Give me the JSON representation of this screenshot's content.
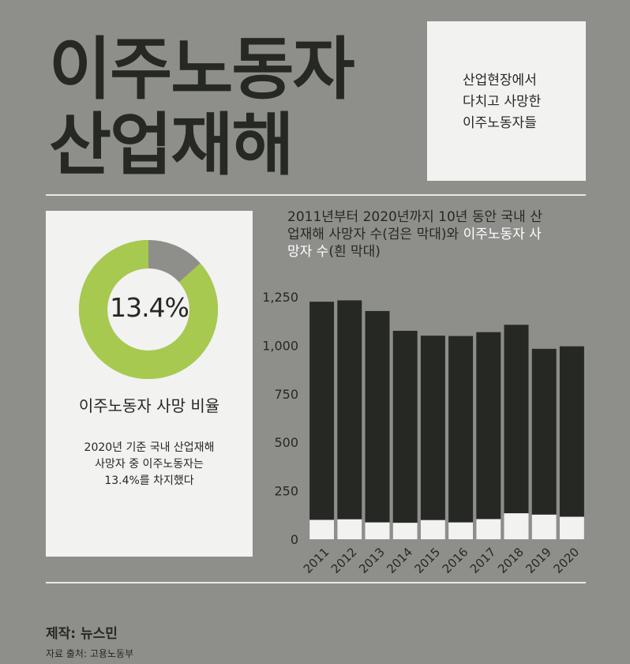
{
  "title": {
    "line1": "이주노동자",
    "line2": "산업재해"
  },
  "description": {
    "lines": [
      "산업현장에서",
      "다치고 사망한",
      "이주노동자들"
    ]
  },
  "donut": {
    "percent_label": "13.4%",
    "value": 13.4,
    "title": "이주노동자 사망 비율",
    "note_lines": [
      "2020년 기준 국내 산업재해",
      "사망자 중 이주노동자는",
      "13.4%를 차지했다"
    ],
    "colors": {
      "share": "#a8c94f",
      "rest": "#8e8f8b"
    }
  },
  "chart_title": {
    "line1": "2011년부터 2020년까지 10년 동안 국내 산",
    "line2_dark": "업재해 사망자 수(검은 막대)와 ",
    "line2_light": "이주노동자 사",
    "line3_light": "망자 수",
    "line3_dark": "(흰 막대)"
  },
  "chart_data": {
    "type": "bar",
    "stacked": "overlay",
    "categories": [
      "2011",
      "2012",
      "2013",
      "2014",
      "2015",
      "2016",
      "2017",
      "2018",
      "2019",
      "2020"
    ],
    "series": [
      {
        "values": [
          1225,
          1232,
          1177,
          1075,
          1050,
          1048,
          1068,
          1106,
          982,
          995
        ],
        "color": "#262824"
      },
      {
        "values": [
          100,
          103,
          87,
          85,
          99,
          87,
          104,
          134,
          127,
          116
        ],
        "color": "#f2f2f0"
      }
    ],
    "yticks": [
      "1,250",
      "1,000",
      "750",
      "500",
      "250",
      "0"
    ],
    "ytick_values": [
      1250,
      1000,
      750,
      500,
      250,
      0
    ],
    "ylim": [
      0,
      1250
    ],
    "grid": false,
    "legend": "none"
  },
  "credit": "제작: 뉴스민",
  "source": "자료 출처: 고용노동부"
}
